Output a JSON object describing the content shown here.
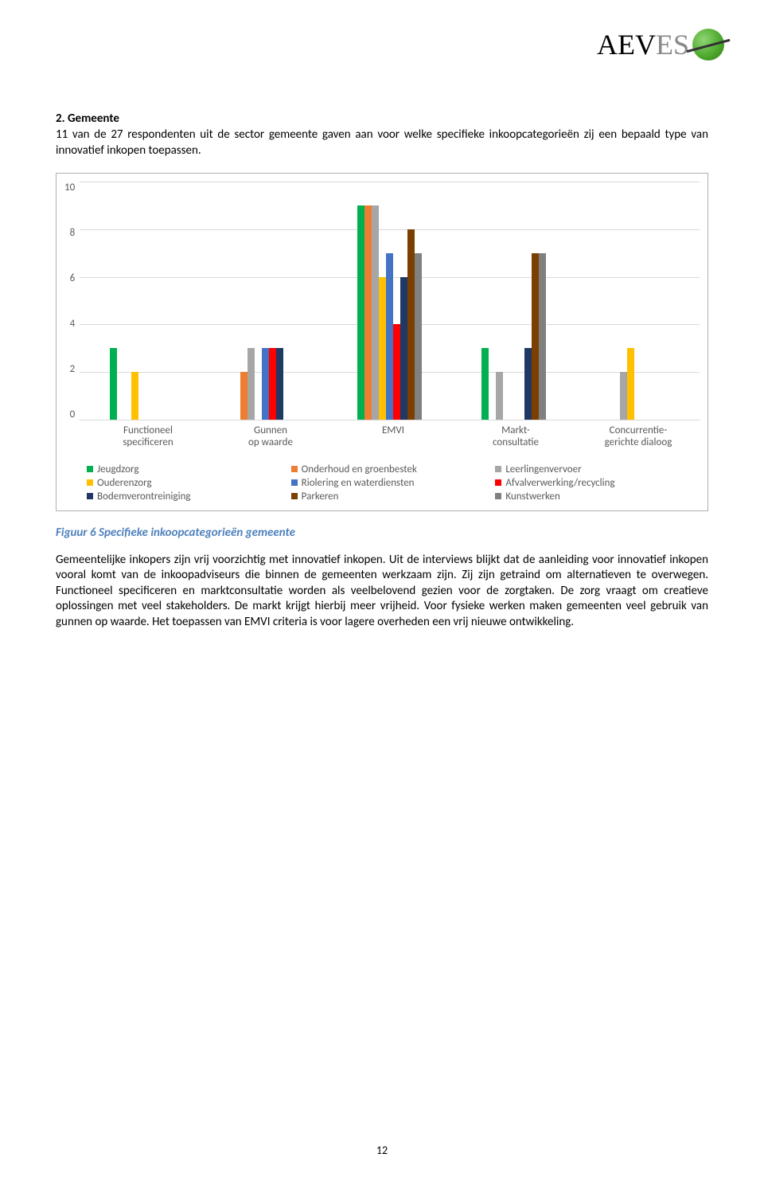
{
  "logo": {
    "text_aev": "AEV",
    "text_es": "ES"
  },
  "section_heading": "2.  Gemeente",
  "intro_text": "11 van de 27 respondenten uit de sector gemeente gaven aan voor welke specifieke inkoopcategorieën zij een bepaald type van innovatief inkopen toepassen.",
  "chart": {
    "y_max": 10,
    "y_ticks": [
      "10",
      "8",
      "6",
      "4",
      "2",
      "0"
    ],
    "tick_positions_pct": [
      0,
      20,
      40,
      60,
      80,
      100
    ],
    "categories": [
      {
        "line1": "Functioneel",
        "line2": "specificeren"
      },
      {
        "line1": "Gunnen",
        "line2": "op waarde"
      },
      {
        "line1": "EMVI",
        "line2": ""
      },
      {
        "line1": "Markt-",
        "line2": "consultatie"
      },
      {
        "line1": "Concurrentie-",
        "line2": "gerichte dialoog"
      }
    ],
    "series": [
      {
        "name": "Jeugdzorg",
        "color": "#00b050"
      },
      {
        "name": "Onderhoud en groenbestek",
        "color": "#ed7d31"
      },
      {
        "name": "Leerlingenvervoer",
        "color": "#a6a6a6"
      },
      {
        "name": "Ouderenzorg",
        "color": "#ffc000"
      },
      {
        "name": "Riolering en waterdiensten",
        "color": "#4472c4"
      },
      {
        "name": "Afvalverwerking/recycling",
        "color": "#ff0000"
      },
      {
        "name": "Bodemverontreiniging",
        "color": "#1f3864"
      },
      {
        "name": "Parkeren",
        "color": "#7b3f00"
      },
      {
        "name": "Kunstwerken",
        "color": "#808080"
      }
    ],
    "data": [
      [
        3,
        0,
        0,
        2,
        0,
        0,
        0,
        0,
        0
      ],
      [
        0,
        2,
        3,
        0,
        3,
        3,
        3,
        0,
        0
      ],
      [
        9,
        9,
        9,
        6,
        7,
        4,
        6,
        8,
        7
      ],
      [
        3,
        0,
        2,
        0,
        0,
        0,
        3,
        7,
        7
      ],
      [
        0,
        0,
        2,
        3,
        0,
        0,
        0,
        0,
        0
      ]
    ]
  },
  "caption": "Figuur 6 Specifieke inkoopcategorieën gemeente",
  "body_text": "Gemeentelijke inkopers zijn vrij voorzichtig met innovatief inkopen. Uit de interviews blijkt dat de aanleiding voor innovatief inkopen vooral komt van de inkoopadviseurs die binnen de gemeenten werkzaam zijn. Zij zijn getraind om alternatieven te overwegen. Functioneel specificeren en marktconsultatie worden als veelbelovend gezien voor de zorgtaken. De zorg vraagt om creatieve oplossingen met veel stakeholders. De markt krijgt hierbij meer vrijheid. Voor fysieke werken maken gemeenten veel gebruik van gunnen op waarde. Het toepassen van EMVI criteria is voor lagere overheden een vrij nieuwe ontwikkeling.",
  "page_number": "12"
}
